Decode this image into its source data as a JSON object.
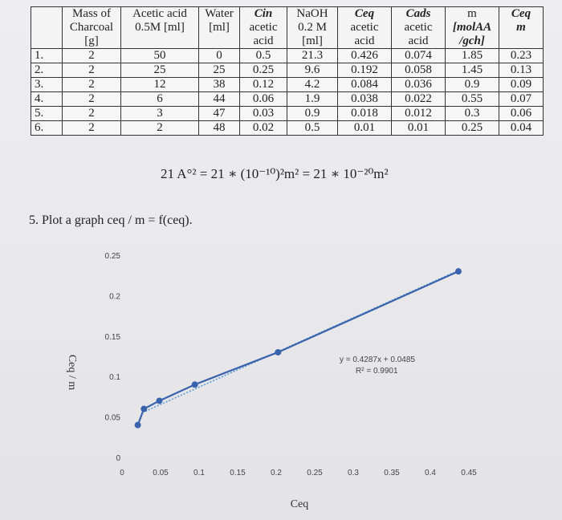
{
  "table": {
    "headers": [
      {
        "lines": [
          "Mass of",
          "Charcoal",
          "[g]"
        ]
      },
      {
        "lines": [
          "Acetic acid",
          "0.5M [ml]"
        ]
      },
      {
        "lines": [
          "Water",
          "[ml]"
        ]
      },
      {
        "lines": [
          "Cin",
          "acetic",
          "acid"
        ]
      },
      {
        "lines": [
          "NaOH",
          "0.2 M",
          "[ml]"
        ]
      },
      {
        "lines": [
          "Ceq",
          "acetic",
          "acid"
        ]
      },
      {
        "lines": [
          "Cads",
          "acetic",
          "acid"
        ]
      },
      {
        "lines": [
          "m",
          "[molAA",
          "/gch]"
        ]
      },
      {
        "lines": [
          "Ceq",
          "m"
        ]
      }
    ],
    "rows": [
      {
        "num": "1.",
        "cells": [
          "2",
          "50",
          "0",
          "0.5",
          "21.3",
          "0.426",
          "0.074",
          "1.85",
          "0.23"
        ]
      },
      {
        "num": "2.",
        "cells": [
          "2",
          "25",
          "25",
          "0.25",
          "9.6",
          "0.192",
          "0.058",
          "1.45",
          "0.13"
        ]
      },
      {
        "num": "3.",
        "cells": [
          "2",
          "12",
          "38",
          "0.12",
          "4.2",
          "0.084",
          "0.036",
          "0.9",
          "0.09"
        ]
      },
      {
        "num": "4.",
        "cells": [
          "2",
          "6",
          "44",
          "0.06",
          "1.9",
          "0.038",
          "0.022",
          "0.55",
          "0.07"
        ]
      },
      {
        "num": "5.",
        "cells": [
          "2",
          "3",
          "47",
          "0.03",
          "0.9",
          "0.018",
          "0.012",
          "0.3",
          "0.06"
        ]
      },
      {
        "num": "6.",
        "cells": [
          "2",
          "2",
          "48",
          "0.02",
          "0.5",
          "0.01",
          "0.01",
          "0.25",
          "0.04"
        ]
      }
    ]
  },
  "formula": "21 A°² = 21 ∗ (10⁻¹⁰)²m² = 21 ∗ 10⁻²⁰m²",
  "task": "5. Plot a graph ceq / m = f(ceq).",
  "chart_data": {
    "type": "scatter",
    "title": "",
    "xlabel": "Ceq",
    "ylabel": "Ceq / m",
    "xlim": [
      0,
      0.45
    ],
    "ylim": [
      0,
      0.25
    ],
    "x_ticks": [
      "0",
      "0.05",
      "0.1",
      "0.15",
      "0.2",
      "0.25",
      "0.3",
      "0.35",
      "0.4",
      "0.45"
    ],
    "y_ticks": [
      "0",
      "0.05",
      "0.1",
      "0.15",
      "0.2",
      "0.25"
    ],
    "series": [
      {
        "x": [
          0.01,
          0.018,
          0.038,
          0.084,
          0.192,
          0.426
        ],
        "y": [
          0.04,
          0.06,
          0.07,
          0.09,
          0.13,
          0.23
        ]
      }
    ],
    "trendline": {
      "slope": 0.4287,
      "intercept": 0.0485,
      "equation": "y = 0.4287x + 0.0485",
      "r2": "R² = 0.9901"
    },
    "colors": {
      "series": "#3a63ad",
      "trend": "#5b9bd5"
    }
  }
}
